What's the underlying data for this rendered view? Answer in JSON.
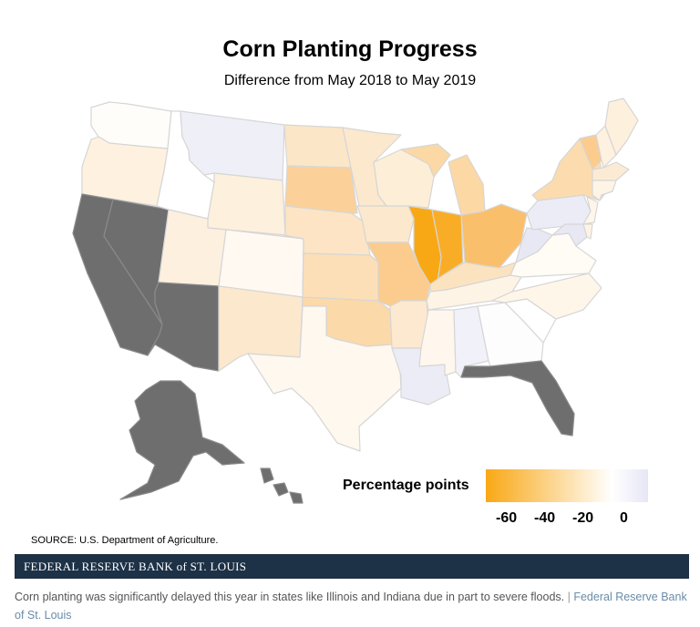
{
  "title": "Corn Planting Progress",
  "subtitle": "Difference from May 2018 to May 2019",
  "legend": {
    "label": "Percentage points",
    "ticks": [
      "-60",
      "-40",
      "-20",
      "0"
    ],
    "colors": [
      "#f9a815",
      "#ffffff",
      "#e6e6f5"
    ]
  },
  "colors": {
    "no_data": "#6e6e6e",
    "border": "#d6d6d6",
    "banner": "#1d3147",
    "credit": "#6a8ca8"
  },
  "source": "SOURCE: U.S. Department of Agriculture.",
  "banner": "FEDERAL RESERVE BANK of ST. LOUIS",
  "caption": {
    "text": "Corn planting was significantly delayed this year in states like Illinois and Indiana due in part to severe floods.",
    "separator": "|",
    "credit": "Federal Reserve Bank of St. Louis"
  },
  "states": [
    {
      "id": "WA",
      "value": -2,
      "color": "#fffdf9"
    },
    {
      "id": "OR",
      "value": -8,
      "color": "#fef1df"
    },
    {
      "id": "CA",
      "value": null,
      "color": "#6e6e6e"
    },
    {
      "id": "NV",
      "value": null,
      "color": "#6e6e6e"
    },
    {
      "id": "ID",
      "value": 0,
      "color": "#ffffff"
    },
    {
      "id": "MT",
      "value": 2,
      "color": "#efeff8"
    },
    {
      "id": "WY",
      "value": -9,
      "color": "#fdf0dd"
    },
    {
      "id": "UT",
      "value": -8,
      "color": "#fdf0de"
    },
    {
      "id": "AZ",
      "value": null,
      "color": "#6e6e6e"
    },
    {
      "id": "CO",
      "value": -3,
      "color": "#fff9f1"
    },
    {
      "id": "NM",
      "value": -12,
      "color": "#fce8cd"
    },
    {
      "id": "ND",
      "value": -13,
      "color": "#fce6c8"
    },
    {
      "id": "SD",
      "value": -28,
      "color": "#fbd199"
    },
    {
      "id": "NE",
      "value": -14,
      "color": "#fce4c4"
    },
    {
      "id": "KS",
      "value": -18,
      "color": "#fcdfb7"
    },
    {
      "id": "OK",
      "value": -22,
      "color": "#fcd9a9"
    },
    {
      "id": "TX",
      "value": -4,
      "color": "#fff8ef"
    },
    {
      "id": "MN",
      "value": -12,
      "color": "#fce8cd"
    },
    {
      "id": "IA",
      "value": -12,
      "color": "#fce8cd"
    },
    {
      "id": "MO",
      "value": -30,
      "color": "#fbcc8e"
    },
    {
      "id": "AR",
      "value": -12,
      "color": "#fce9d0"
    },
    {
      "id": "LA",
      "value": 2,
      "color": "#ececf7"
    },
    {
      "id": "WI",
      "value": -10,
      "color": "#fdeed7"
    },
    {
      "id": "IL",
      "value": -62,
      "color": "#f9a815"
    },
    {
      "id": "MI",
      "value": -22,
      "color": "#fcd8a5"
    },
    {
      "id": "IN",
      "value": -54,
      "color": "#f9ad26"
    },
    {
      "id": "OH",
      "value": -38,
      "color": "#fabf6b"
    },
    {
      "id": "KY",
      "value": -14,
      "color": "#fce3bf"
    },
    {
      "id": "TN",
      "value": -6,
      "color": "#fef4e6"
    },
    {
      "id": "MS",
      "value": -4,
      "color": "#fff7ed"
    },
    {
      "id": "AL",
      "value": 2,
      "color": "#f1f1f9"
    },
    {
      "id": "GA",
      "value": 0,
      "color": "#fdfdfe"
    },
    {
      "id": "FL",
      "value": null,
      "color": "#6e6e6e"
    },
    {
      "id": "SC",
      "value": 0,
      "color": "#ffffff"
    },
    {
      "id": "NC",
      "value": -4,
      "color": "#fff6ea"
    },
    {
      "id": "VA",
      "value": -2,
      "color": "#fffbf5"
    },
    {
      "id": "WV",
      "value": 3,
      "color": "#e8e8f5"
    },
    {
      "id": "PA",
      "value": 3,
      "color": "#ececf7"
    },
    {
      "id": "NY",
      "value": -18,
      "color": "#fcdcae"
    },
    {
      "id": "VT",
      "value": -30,
      "color": "#fbcc8e"
    },
    {
      "id": "NH",
      "value": -8,
      "color": "#fef1df"
    },
    {
      "id": "ME",
      "value": -8,
      "color": "#fdf0dd"
    },
    {
      "id": "MA",
      "value": -10,
      "color": "#fcebd4"
    },
    {
      "id": "CT",
      "value": -6,
      "color": "#fef4e6"
    },
    {
      "id": "NJ",
      "value": -4,
      "color": "#fff6ea"
    },
    {
      "id": "MD",
      "value": 2,
      "color": "#e8e8f5"
    },
    {
      "id": "DE",
      "value": -2,
      "color": "#fef4e6"
    },
    {
      "id": "AK",
      "value": null,
      "color": "#6e6e6e"
    },
    {
      "id": "HI",
      "value": null,
      "color": "#6e6e6e"
    }
  ]
}
